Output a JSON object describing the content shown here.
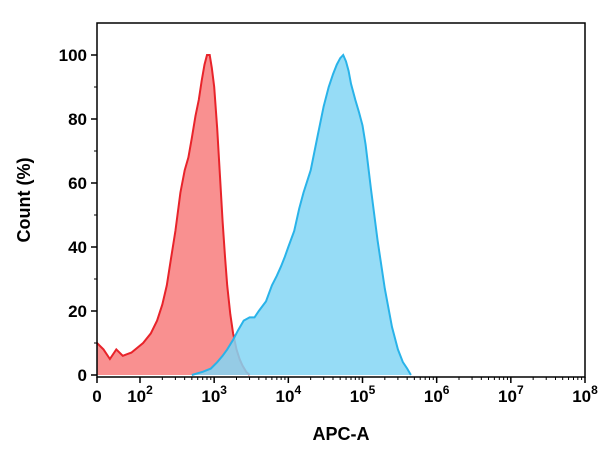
{
  "chart_data": {
    "type": "area",
    "xlabel": "APC-A",
    "ylabel": "Count  (%)",
    "xscale": "biexponential",
    "xlim": [
      0,
      100000000
    ],
    "ylim": [
      0,
      110
    ],
    "grid": false,
    "legend": "none",
    "yticks": [
      {
        "value": 0,
        "label": "0"
      },
      {
        "value": 20,
        "label": "20"
      },
      {
        "value": 40,
        "label": "40"
      },
      {
        "value": 60,
        "label": "60"
      },
      {
        "value": 80,
        "label": "80"
      },
      {
        "value": 100,
        "label": "100"
      }
    ],
    "xticks": [
      {
        "value": 0,
        "base": "0",
        "exp": ""
      },
      {
        "value": 100,
        "base": "10",
        "exp": "2"
      },
      {
        "value": 1000,
        "base": "10",
        "exp": "3"
      },
      {
        "value": 10000,
        "base": "10",
        "exp": "4"
      },
      {
        "value": 100000,
        "base": "10",
        "exp": "5"
      },
      {
        "value": 1000000,
        "base": "10",
        "exp": "6"
      },
      {
        "value": 10000000,
        "base": "10",
        "exp": "7"
      },
      {
        "value": 100000000,
        "base": "10",
        "exp": "8"
      }
    ],
    "series": [
      {
        "fill": "#f87d7d",
        "stroke": "#e8232a",
        "points": [
          [
            0,
            10
          ],
          [
            15,
            8
          ],
          [
            30,
            5
          ],
          [
            45,
            8
          ],
          [
            60,
            6
          ],
          [
            80,
            7
          ],
          [
            110,
            10
          ],
          [
            140,
            13
          ],
          [
            170,
            17
          ],
          [
            200,
            22
          ],
          [
            230,
            28
          ],
          [
            260,
            36
          ],
          [
            300,
            45
          ],
          [
            350,
            57
          ],
          [
            400,
            64
          ],
          [
            450,
            68
          ],
          [
            500,
            74
          ],
          [
            560,
            81
          ],
          [
            620,
            86
          ],
          [
            680,
            92
          ],
          [
            740,
            97
          ],
          [
            800,
            100
          ],
          [
            870,
            100
          ],
          [
            930,
            96
          ],
          [
            1000,
            90
          ],
          [
            1100,
            77
          ],
          [
            1200,
            62
          ],
          [
            1300,
            48
          ],
          [
            1400,
            37
          ],
          [
            1500,
            28
          ],
          [
            1650,
            19
          ],
          [
            1800,
            13
          ],
          [
            2000,
            8
          ],
          [
            2200,
            5
          ],
          [
            2400,
            3
          ],
          [
            2700,
            1
          ],
          [
            3000,
            0
          ]
        ]
      },
      {
        "fill": "#84d6f5",
        "stroke": "#29b3e9",
        "points": [
          [
            500,
            0
          ],
          [
            700,
            1
          ],
          [
            900,
            2
          ],
          [
            1100,
            4
          ],
          [
            1300,
            6
          ],
          [
            1500,
            8
          ],
          [
            1800,
            11
          ],
          [
            2100,
            14
          ],
          [
            2500,
            17
          ],
          [
            3000,
            18
          ],
          [
            3500,
            18
          ],
          [
            4000,
            20
          ],
          [
            5000,
            23
          ],
          [
            6000,
            28
          ],
          [
            7000,
            31
          ],
          [
            8000,
            34
          ],
          [
            9000,
            37
          ],
          [
            10000,
            40
          ],
          [
            12000,
            45
          ],
          [
            14000,
            52
          ],
          [
            16000,
            57
          ],
          [
            20000,
            64
          ],
          [
            25000,
            75
          ],
          [
            30000,
            84
          ],
          [
            35000,
            90
          ],
          [
            40000,
            94
          ],
          [
            45000,
            97
          ],
          [
            50000,
            99
          ],
          [
            55000,
            100
          ],
          [
            60000,
            98
          ],
          [
            65000,
            95
          ],
          [
            70000,
            91
          ],
          [
            80000,
            86
          ],
          [
            90000,
            82
          ],
          [
            100000,
            78
          ],
          [
            110000,
            72
          ],
          [
            130000,
            58
          ],
          [
            160000,
            42
          ],
          [
            200000,
            27
          ],
          [
            250000,
            15
          ],
          [
            300000,
            8
          ],
          [
            350000,
            4
          ],
          [
            400000,
            2
          ],
          [
            450000,
            0
          ]
        ]
      }
    ]
  }
}
